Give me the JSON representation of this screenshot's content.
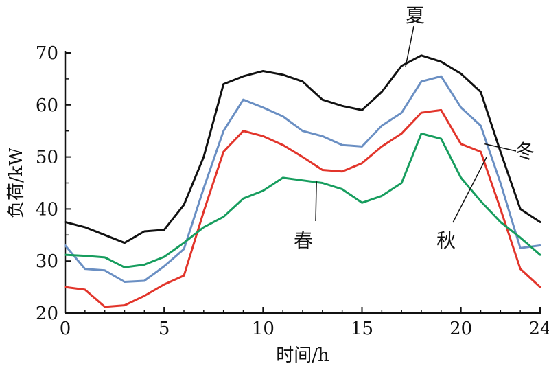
{
  "chart_data": {
    "type": "line",
    "xlabel": "时间/h",
    "ylabel": "负荷/kW",
    "xlim": [
      0,
      24
    ],
    "ylim": [
      20,
      70
    ],
    "xticks": [
      0,
      5,
      10,
      15,
      20,
      24
    ],
    "yticks": [
      20,
      30,
      40,
      50,
      60,
      70
    ],
    "grid": false,
    "x": [
      0,
      1,
      2,
      3,
      4,
      5,
      6,
      7,
      8,
      9,
      10,
      11,
      12,
      13,
      14,
      15,
      16,
      17,
      18,
      19,
      20,
      21,
      22,
      23,
      24
    ],
    "series": [
      {
        "name": "夏",
        "color": "#111111",
        "values": [
          37.5,
          36.5,
          35.0,
          33.5,
          35.7,
          36.0,
          40.8,
          50.0,
          64.0,
          65.5,
          66.5,
          65.8,
          64.5,
          61.0,
          59.8,
          59.0,
          62.5,
          67.5,
          69.5,
          68.3,
          66.0,
          62.5,
          51.0,
          40.0,
          37.5
        ]
      },
      {
        "name": "冬",
        "color": "#6a8fc3",
        "values": [
          33.0,
          28.5,
          28.2,
          26.0,
          26.2,
          29.0,
          32.3,
          44.0,
          55.0,
          61.0,
          59.5,
          57.8,
          55.0,
          54.0,
          52.3,
          52.0,
          56.0,
          58.5,
          64.5,
          65.5,
          59.5,
          56.0,
          45.0,
          32.5,
          33.0
        ]
      },
      {
        "name": "秋",
        "color": "#e2352b",
        "values": [
          25.0,
          24.5,
          21.2,
          21.5,
          23.3,
          25.5,
          27.2,
          39.5,
          51.0,
          55.0,
          54.0,
          52.3,
          50.0,
          47.5,
          47.2,
          48.8,
          52.0,
          54.5,
          58.5,
          59.0,
          52.5,
          51.0,
          40.0,
          28.5,
          25.0
        ]
      },
      {
        "name": "春",
        "color": "#179d5e",
        "values": [
          31.2,
          31.0,
          30.7,
          28.8,
          29.3,
          30.8,
          33.5,
          36.5,
          38.5,
          42.0,
          43.5,
          46.0,
          45.5,
          45.0,
          43.8,
          41.2,
          42.5,
          45.0,
          54.5,
          53.5,
          46.0,
          41.5,
          37.5,
          34.5,
          31.2
        ]
      }
    ],
    "annotations": [
      {
        "text": "夏",
        "series": "夏"
      },
      {
        "text": "冬",
        "series": "冬"
      },
      {
        "text": "秋",
        "series": "秋"
      },
      {
        "text": "春",
        "series": "春"
      }
    ]
  }
}
